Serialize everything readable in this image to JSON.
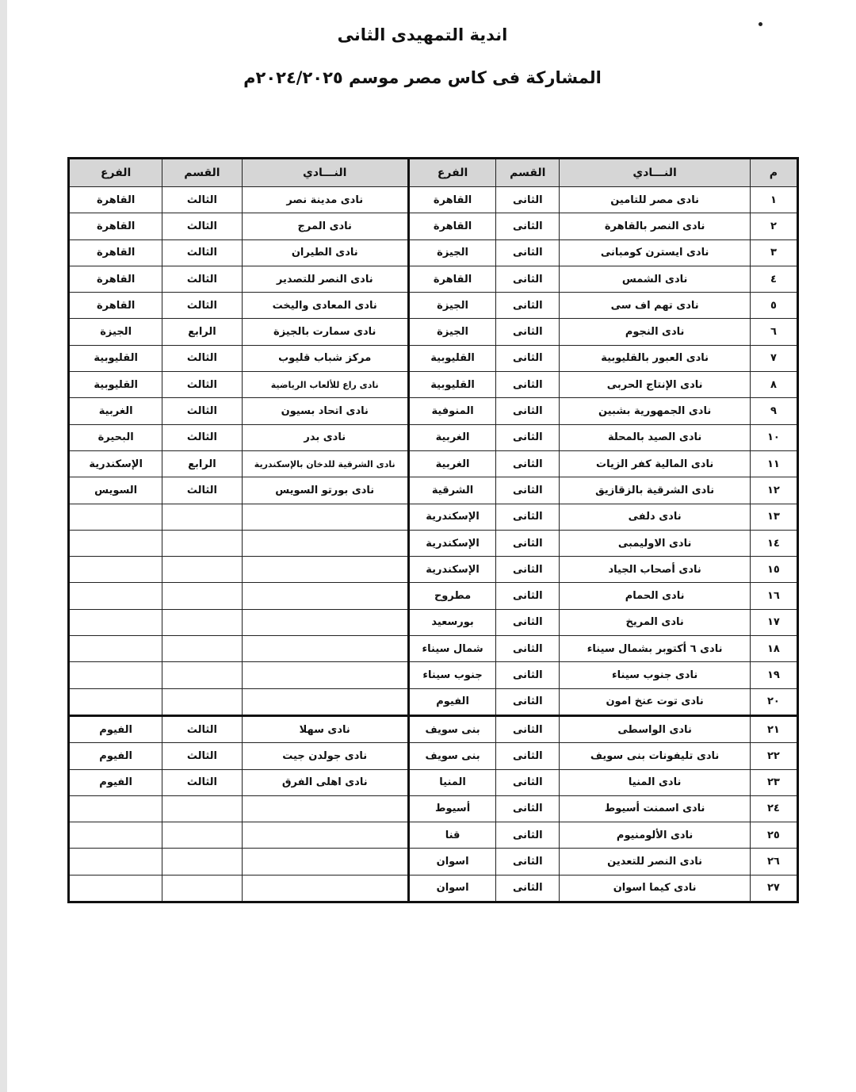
{
  "title": "اندية التمهيدى الثانى",
  "subtitle": "المشاركة فى كاس مصر موسم ٢٠٢٤/٢٠٢٥م",
  "headers": {
    "num": "م",
    "club": "النـــادي",
    "division": "القسم",
    "branch": "الفرع",
    "club2": "النـــادي",
    "division2": "القسم",
    "branch2": "الفرع"
  },
  "rows": [
    {
      "num": "١",
      "club": "نادى مصر للتامين",
      "division": "الثانى",
      "branch": "القاهرة",
      "club2": "نادى مدينة نصر",
      "division2": "الثالث",
      "branch2": "القاهرة"
    },
    {
      "num": "٢",
      "club": "نادى النصر بالقاهرة",
      "division": "الثانى",
      "branch": "القاهرة",
      "club2": "نادى المرج",
      "division2": "الثالث",
      "branch2": "القاهرة"
    },
    {
      "num": "٣",
      "club": "نادى ايسترن كومبانى",
      "division": "الثانى",
      "branch": "الجيزة",
      "club2": "نادى الطيران",
      "division2": "الثالث",
      "branch2": "القاهرة"
    },
    {
      "num": "٤",
      "club": "نادى الشمس",
      "division": "الثانى",
      "branch": "القاهرة",
      "club2": "نادى النصر للتصدير",
      "division2": "الثالث",
      "branch2": "القاهرة"
    },
    {
      "num": "٥",
      "club": "نادى تهم اف سى",
      "division": "الثانى",
      "branch": "الجيزة",
      "club2": "نادى المعادى واليخت",
      "division2": "الثالث",
      "branch2": "القاهرة"
    },
    {
      "num": "٦",
      "club": "نادى النجوم",
      "division": "الثانى",
      "branch": "الجيزة",
      "club2": "نادى سمارت بالجيزة",
      "division2": "الرابع",
      "branch2": "الجيزة"
    },
    {
      "num": "٧",
      "club": "نادى العبور بالقليوبية",
      "division": "الثانى",
      "branch": "القليوبية",
      "club2": "مركز شباب قليوب",
      "division2": "الثالث",
      "branch2": "القليوبية"
    },
    {
      "num": "٨",
      "club": "نادى الإنتاج الحربى",
      "division": "الثانى",
      "branch": "القليوبية",
      "club2": "نادى راع للألعاب الرياضية",
      "division2": "الثالث",
      "branch2": "القليوبية"
    },
    {
      "num": "٩",
      "club": "نادى الجمهورية بشبين",
      "division": "الثانى",
      "branch": "المنوفية",
      "club2": "نادى اتحاد بسيون",
      "division2": "الثالث",
      "branch2": "الغربية"
    },
    {
      "num": "١٠",
      "club": "نادى الصيد بالمحلة",
      "division": "الثانى",
      "branch": "الغربية",
      "club2": "نادى بدر",
      "division2": "الثالث",
      "branch2": "البحيرة"
    },
    {
      "num": "١١",
      "club": "نادى المالية كفر الزيات",
      "division": "الثانى",
      "branch": "الغربية",
      "club2": "نادى الشرقية للدخان بالإسكندرية",
      "division2": "الرابع",
      "branch2": "الإسكندرية"
    },
    {
      "num": "١٢",
      "club": "نادى الشرقية بالزقازيق",
      "division": "الثانى",
      "branch": "الشرقية",
      "club2": "نادى بورتو السويس",
      "division2": "الثالث",
      "branch2": "السويس"
    },
    {
      "num": "١٣",
      "club": "نادى دلفى",
      "division": "الثانى",
      "branch": "الإسكندرية",
      "club2": "",
      "division2": "",
      "branch2": ""
    },
    {
      "num": "١٤",
      "club": "نادى الاوليمبى",
      "division": "الثانى",
      "branch": "الإسكندرية",
      "club2": "",
      "division2": "",
      "branch2": ""
    },
    {
      "num": "١٥",
      "club": "نادى أصحاب الجياد",
      "division": "الثانى",
      "branch": "الإسكندرية",
      "club2": "",
      "division2": "",
      "branch2": ""
    },
    {
      "num": "١٦",
      "club": "نادى الحمام",
      "division": "الثانى",
      "branch": "مطروح",
      "club2": "",
      "division2": "",
      "branch2": ""
    },
    {
      "num": "١٧",
      "club": "نادى المريخ",
      "division": "الثانى",
      "branch": "بورسعيد",
      "club2": "",
      "division2": "",
      "branch2": ""
    },
    {
      "num": "١٨",
      "club": "نادى ٦ أكتوبر بشمال سيناء",
      "division": "الثانى",
      "branch": "شمال سيناء",
      "club2": "",
      "division2": "",
      "branch2": ""
    },
    {
      "num": "١٩",
      "club": "نادى جنوب سيناء",
      "division": "الثانى",
      "branch": "جنوب سيناء",
      "club2": "",
      "division2": "",
      "branch2": ""
    },
    {
      "num": "٢٠",
      "club": "نادى توت عنخ امون",
      "division": "الثانى",
      "branch": "الفيوم",
      "club2": "",
      "division2": "",
      "branch2": ""
    },
    {
      "num": "٢١",
      "club": "نادى الواسطى",
      "division": "الثانى",
      "branch": "بنى سويف",
      "club2": "نادى سهلا",
      "division2": "الثالث",
      "branch2": "الفيوم"
    },
    {
      "num": "٢٢",
      "club": "نادى تليفونات بنى سويف",
      "division": "الثانى",
      "branch": "بنى سويف",
      "club2": "نادى جولدن جيت",
      "division2": "الثالث",
      "branch2": "الفيوم"
    },
    {
      "num": "٢٣",
      "club": "نادى المنيا",
      "division": "الثانى",
      "branch": "المنيا",
      "club2": "نادى اهلى الفرق",
      "division2": "الثالث",
      "branch2": "الفيوم"
    },
    {
      "num": "٢٤",
      "club": "نادى اسمنت أسيوط",
      "division": "الثانى",
      "branch": "أسيوط",
      "club2": "",
      "division2": "",
      "branch2": ""
    },
    {
      "num": "٢٥",
      "club": "نادى الألومنيوم",
      "division": "الثانى",
      "branch": "قنا",
      "club2": "",
      "division2": "",
      "branch2": ""
    },
    {
      "num": "٢٦",
      "club": "نادى النصر للتعدين",
      "division": "الثانى",
      "branch": "اسوان",
      "club2": "",
      "division2": "",
      "branch2": ""
    },
    {
      "num": "٢٧",
      "club": "نادى كيما اسوان",
      "division": "الثانى",
      "branch": "اسوان",
      "club2": "",
      "division2": "",
      "branch2": ""
    }
  ]
}
